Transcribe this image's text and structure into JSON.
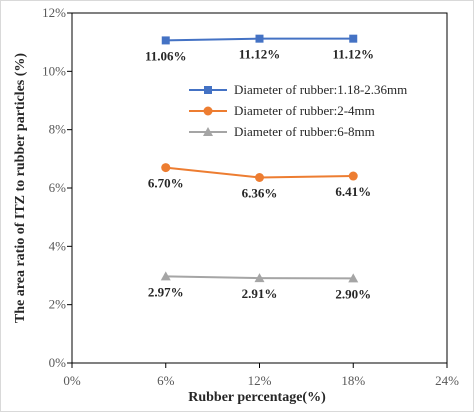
{
  "chart_data": {
    "type": "line",
    "xlabel": "Rubber percentage(%)",
    "ylabel": "The area ratio of ITZ  to rubber particles (%)",
    "xlim": [
      0,
      24
    ],
    "ylim": [
      0,
      12
    ],
    "x_ticks": [
      0,
      6,
      12,
      18,
      24
    ],
    "x_tick_labels": [
      "0%",
      "6%",
      "12%",
      "18%",
      "24%"
    ],
    "y_ticks": [
      0,
      2,
      4,
      6,
      8,
      10,
      12
    ],
    "y_tick_labels": [
      "0%",
      "2%",
      "4%",
      "6%",
      "8%",
      "10%",
      "12%"
    ],
    "x": [
      6,
      12,
      18
    ],
    "grid": false,
    "legend_position": "right",
    "series": [
      {
        "name": "Diameter of rubber:1.18-2.36mm",
        "values": [
          11.06,
          11.12,
          11.12
        ],
        "labels": [
          "11.06%",
          "11.12%",
          "11.12%"
        ],
        "color": "#4472c4",
        "marker": "square"
      },
      {
        "name": "Diameter of rubber:2-4mm",
        "values": [
          6.7,
          6.36,
          6.41
        ],
        "labels": [
          "6.70%",
          "6.36%",
          "6.41%"
        ],
        "color": "#ed7d31",
        "marker": "circle"
      },
      {
        "name": "Diameter of rubber:6-8mm",
        "values": [
          2.97,
          2.91,
          2.9
        ],
        "labels": [
          "2.97%",
          "2.91%",
          "2.90%"
        ],
        "color": "#a5a5a5",
        "marker": "triangle"
      }
    ]
  }
}
